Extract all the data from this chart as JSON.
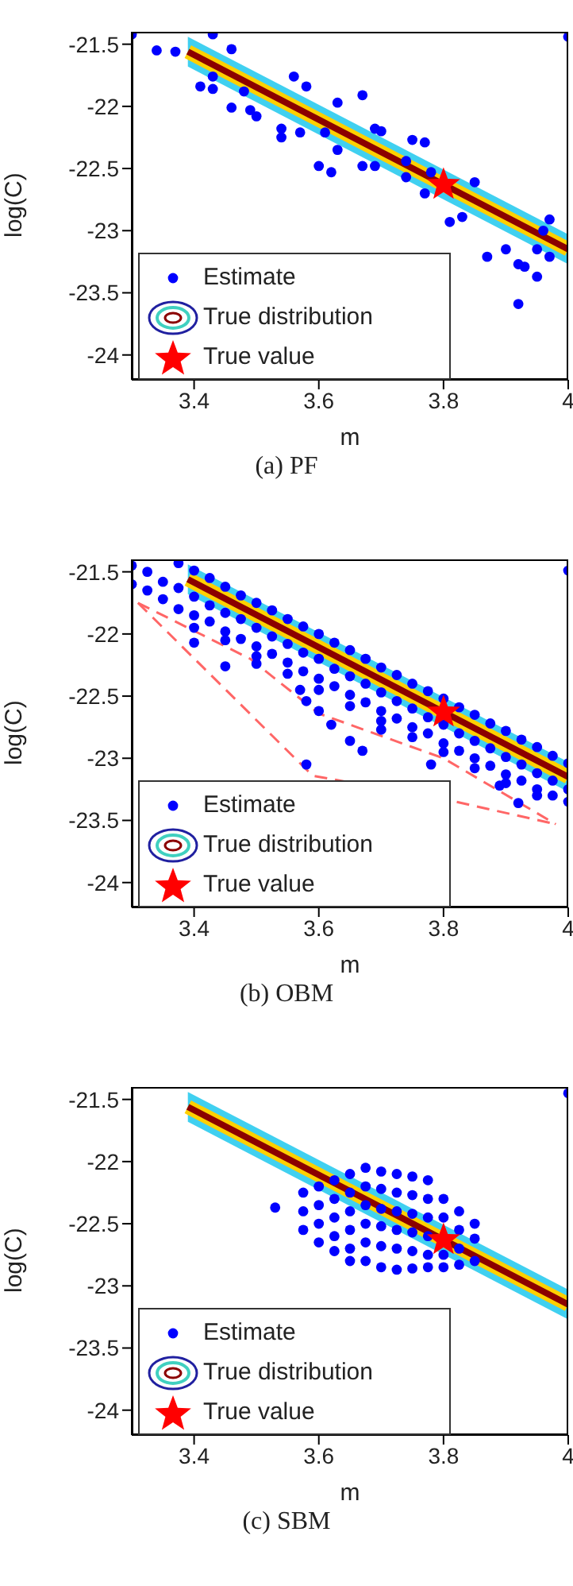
{
  "chart_data": [
    {
      "type": "scatter",
      "title": "(a) PF",
      "xlabel": "m",
      "ylabel": "log(C)",
      "xlim": [
        3.3,
        4.0
      ],
      "ylim": [
        -24.2,
        -21.4
      ],
      "xticks": [
        3.4,
        3.6,
        3.8,
        4
      ],
      "yticks": [
        -21.5,
        -22,
        -22.5,
        -23,
        -23.5,
        -24
      ],
      "legend": "bottom left",
      "grid": false,
      "series": [
        {
          "name": "True distribution",
          "type": "line",
          "color": "#8b0000",
          "marker": "none",
          "x": [
            3.39,
            4.0
          ],
          "values": [
            -21.56,
            -23.15
          ],
          "lower": [
            -21.68,
            -23.27
          ],
          "upper": [
            -21.44,
            -23.03
          ]
        },
        {
          "name": "Estimate",
          "color": "#0000ff",
          "marker": "circle",
          "x": [
            3.3,
            3.34,
            3.37,
            3.43,
            3.46,
            3.41,
            3.43,
            3.43,
            3.46,
            3.48,
            3.49,
            3.5,
            3.54,
            3.54,
            3.57,
            3.56,
            3.58,
            3.61,
            3.63,
            3.6,
            3.62,
            3.63,
            3.67,
            3.67,
            3.69,
            3.69,
            3.7,
            3.74,
            3.75,
            3.77,
            3.74,
            3.77,
            3.78,
            3.81,
            3.83,
            3.85,
            3.87,
            3.9,
            3.92,
            3.93,
            3.92,
            3.95,
            3.95,
            3.97,
            3.97,
            3.96,
            4.0
          ],
          "values": [
            -21.42,
            -21.55,
            -21.56,
            -21.42,
            -21.54,
            -21.84,
            -21.86,
            -21.76,
            -22.01,
            -21.88,
            -22.03,
            -22.08,
            -22.18,
            -22.25,
            -22.21,
            -21.76,
            -21.84,
            -22.21,
            -22.35,
            -22.48,
            -22.53,
            -21.97,
            -21.91,
            -22.48,
            -22.48,
            -22.18,
            -22.2,
            -22.44,
            -22.27,
            -22.29,
            -22.57,
            -22.7,
            -22.53,
            -22.93,
            -22.89,
            -22.61,
            -23.21,
            -23.15,
            -23.27,
            -23.29,
            -23.59,
            -23.37,
            -23.15,
            -23.21,
            -22.91,
            -23.0,
            -21.44
          ]
        },
        {
          "name": "True value",
          "type": "scatter",
          "color": "#ff0000",
          "marker": "star",
          "x": [
            3.8
          ],
          "values": [
            -22.63
          ]
        }
      ]
    },
    {
      "type": "scatter",
      "title": "(b) OBM",
      "xlabel": "m",
      "ylabel": "log(C)",
      "xlim": [
        3.3,
        4.0
      ],
      "ylim": [
        -24.2,
        -21.4
      ],
      "xticks": [
        3.4,
        3.6,
        3.8,
        4
      ],
      "yticks": [
        -21.5,
        -22,
        -22.5,
        -23,
        -23.5,
        -24
      ],
      "legend": "bottom left",
      "grid": false,
      "series": [
        {
          "type": "line",
          "color": "#ff6666",
          "marker": "none",
          "line_style": "dashed",
          "x": [
            3.31,
            3.49,
            3.6,
            3.8,
            3.98
          ],
          "values": [
            -21.75,
            -22.2,
            -22.64,
            -23.0,
            -23.53
          ]
        },
        {
          "type": "line",
          "color": "#ff6666",
          "marker": "none",
          "line_style": "dashed",
          "x": [
            3.31,
            3.59,
            3.82,
            3.98
          ],
          "values": [
            -21.75,
            -23.14,
            -23.35,
            -23.53
          ]
        },
        {
          "name": "Estimate",
          "color": "#0000ff",
          "marker": "circle",
          "x": [
            3.3,
            3.3,
            3.325,
            3.325,
            3.35,
            3.35,
            3.375,
            3.375,
            3.375,
            3.4,
            3.4,
            3.4,
            3.4,
            3.425,
            3.425,
            3.425,
            3.45,
            3.45,
            3.45,
            3.45,
            3.475,
            3.475,
            3.475,
            3.5,
            3.5,
            3.5,
            3.5,
            3.525,
            3.525,
            3.525,
            3.55,
            3.55,
            3.55,
            3.55,
            3.575,
            3.575,
            3.575,
            3.6,
            3.6,
            3.6,
            3.6,
            3.625,
            3.625,
            3.625,
            3.65,
            3.65,
            3.65,
            3.65,
            3.675,
            3.675,
            3.675,
            3.7,
            3.7,
            3.7,
            3.7,
            3.725,
            3.725,
            3.725,
            3.75,
            3.75,
            3.75,
            3.75,
            3.775,
            3.775,
            3.775,
            3.8,
            3.8,
            3.8,
            3.8,
            3.825,
            3.825,
            3.825,
            3.85,
            3.85,
            3.85,
            3.85,
            3.875,
            3.875,
            3.875,
            3.9,
            3.9,
            3.9,
            3.9,
            3.925,
            3.925,
            3.925,
            3.95,
            3.95,
            3.95,
            3.95,
            3.975,
            3.975,
            3.975,
            4.0,
            4.0,
            4.0,
            3.4,
            3.45,
            3.5,
            3.57,
            3.58,
            3.6,
            3.62,
            3.65,
            3.67,
            3.58,
            3.7,
            3.78,
            3.89,
            3.92,
            4.0
          ],
          "values": [
            -21.45,
            -21.6,
            -21.5,
            -21.65,
            -21.58,
            -21.72,
            -21.43,
            -21.63,
            -21.8,
            -21.49,
            -21.7,
            -21.85,
            -21.95,
            -21.55,
            -21.77,
            -21.9,
            -21.62,
            -21.83,
            -21.98,
            -22.05,
            -21.69,
            -21.88,
            -22.04,
            -21.75,
            -21.95,
            -22.1,
            -22.18,
            -21.81,
            -22.02,
            -22.16,
            -21.88,
            -22.08,
            -22.23,
            -22.32,
            -21.94,
            -22.15,
            -22.3,
            -22.0,
            -22.2,
            -22.36,
            -22.45,
            -22.07,
            -22.28,
            -22.42,
            -22.13,
            -22.34,
            -22.49,
            -22.58,
            -22.2,
            -22.4,
            -22.55,
            -22.27,
            -22.47,
            -22.62,
            -22.7,
            -22.33,
            -22.54,
            -22.68,
            -22.4,
            -22.6,
            -22.75,
            -22.83,
            -22.46,
            -22.67,
            -22.8,
            -22.52,
            -22.73,
            -22.88,
            -22.95,
            -22.59,
            -22.8,
            -22.94,
            -22.65,
            -22.86,
            -23.0,
            -23.08,
            -22.72,
            -22.92,
            -23.06,
            -22.78,
            -22.99,
            -23.13,
            -23.2,
            -22.85,
            -23.05,
            -23.18,
            -22.91,
            -23.12,
            -23.25,
            -23.3,
            -22.98,
            -23.18,
            -23.3,
            -23.04,
            -23.25,
            -23.35,
            -22.07,
            -22.26,
            -22.24,
            -22.45,
            -22.54,
            -22.62,
            -22.73,
            -22.86,
            -22.94,
            -23.05,
            -22.77,
            -23.05,
            -23.22,
            -23.36,
            -21.49
          ]
        },
        {
          "name": "True distribution",
          "type": "line",
          "color": "#8b0000",
          "marker": "none",
          "x": [
            3.39,
            4.0
          ],
          "values": [
            -21.56,
            -23.15
          ],
          "lower": [
            -21.68,
            -23.27
          ],
          "upper": [
            -21.44,
            -23.03
          ]
        },
        {
          "name": "True value",
          "type": "scatter",
          "color": "#ff0000",
          "marker": "star",
          "x": [
            3.8
          ],
          "values": [
            -22.63
          ]
        }
      ]
    },
    {
      "type": "scatter",
      "title": "(c) SBM",
      "xlabel": "m",
      "ylabel": "log(C)",
      "xlim": [
        3.3,
        4.0
      ],
      "ylim": [
        -24.2,
        -21.4
      ],
      "xticks": [
        3.4,
        3.6,
        3.8,
        4
      ],
      "yticks": [
        -21.5,
        -22,
        -22.5,
        -23,
        -23.5,
        -24
      ],
      "legend": "bottom left",
      "grid": false,
      "series": [
        {
          "name": "True distribution",
          "type": "line",
          "color": "#8b0000",
          "marker": "none",
          "x": [
            3.39,
            4.0
          ],
          "values": [
            -21.56,
            -23.15
          ],
          "lower": [
            -21.68,
            -23.27
          ],
          "upper": [
            -21.44,
            -23.03
          ]
        },
        {
          "name": "Estimate",
          "color": "#0000ff",
          "marker": "circle",
          "x": [
            3.575,
            3.575,
            3.575,
            3.6,
            3.6,
            3.6,
            3.6,
            3.625,
            3.625,
            3.625,
            3.625,
            3.625,
            3.65,
            3.65,
            3.65,
            3.65,
            3.65,
            3.65,
            3.675,
            3.675,
            3.675,
            3.675,
            3.675,
            3.675,
            3.7,
            3.7,
            3.7,
            3.7,
            3.7,
            3.7,
            3.725,
            3.725,
            3.725,
            3.725,
            3.725,
            3.725,
            3.75,
            3.75,
            3.75,
            3.75,
            3.75,
            3.75,
            3.775,
            3.775,
            3.775,
            3.775,
            3.775,
            3.775,
            3.8,
            3.8,
            3.8,
            3.8,
            3.825,
            3.825,
            3.825,
            3.825,
            3.85,
            3.85,
            3.85,
            3.53,
            4.0
          ],
          "values": [
            -22.25,
            -22.4,
            -22.55,
            -22.2,
            -22.35,
            -22.5,
            -22.65,
            -22.15,
            -22.3,
            -22.45,
            -22.6,
            -22.72,
            -22.1,
            -22.25,
            -22.4,
            -22.55,
            -22.7,
            -22.8,
            -22.05,
            -22.2,
            -22.35,
            -22.5,
            -22.65,
            -22.8,
            -22.08,
            -22.22,
            -22.38,
            -22.52,
            -22.68,
            -22.85,
            -22.1,
            -22.25,
            -22.4,
            -22.55,
            -22.7,
            -22.87,
            -22.12,
            -22.27,
            -22.42,
            -22.57,
            -22.72,
            -22.86,
            -22.15,
            -22.3,
            -22.45,
            -22.6,
            -22.75,
            -22.85,
            -22.3,
            -22.45,
            -22.75,
            -22.85,
            -22.4,
            -22.55,
            -22.7,
            -22.83,
            -22.5,
            -22.62,
            -22.8,
            -22.37,
            -21.45
          ]
        },
        {
          "name": "True value",
          "type": "scatter",
          "color": "#ff0000",
          "marker": "star",
          "x": [
            3.8
          ],
          "values": [
            -22.63
          ]
        }
      ]
    }
  ]
}
